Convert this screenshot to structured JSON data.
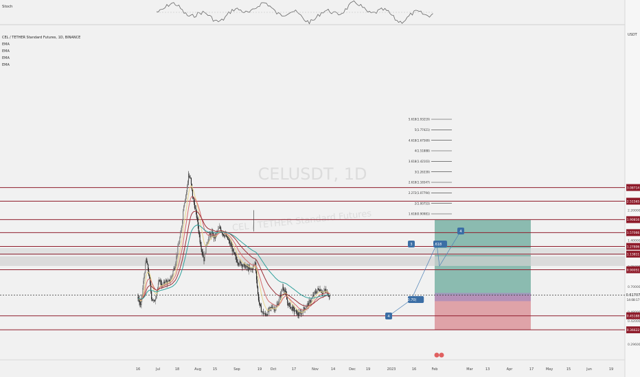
{
  "stoch_panel": {
    "label": "Stoch"
  },
  "main_panel": {
    "symbol_title": "CEL / TETHER Standard Futures, 1D, BINANCE",
    "indicators": [
      "EMA",
      "EMA",
      "EMA",
      "EMA"
    ],
    "watermark_ticker": "CELUSDT, 1D",
    "watermark_name": "CEL / TETHER Standard Futures",
    "currency": "USDT"
  },
  "chart_data": {
    "type": "candlestick",
    "title": "CEL / TETHER Standard Futures, 1D, BINANCE",
    "y_scale": "log",
    "ylim": [
      0.35,
      4.2
    ],
    "x_tick_labels": [
      "16",
      "Jul",
      "18",
      "Aug",
      "15",
      "Sep",
      "19",
      "Oct",
      "17",
      "Nov",
      "14",
      "Dec",
      "19",
      "2023",
      "16",
      "Feb",
      "Mar",
      "13",
      "Apr",
      "17",
      "May",
      "15",
      "Jun",
      "19"
    ],
    "y_tick_labels": [
      "2.20000",
      "1.60000",
      "1.40000",
      "0.95000",
      "0.70000",
      "0.48000",
      "0.42000",
      "0.29600"
    ],
    "horizontal_levels": [
      {
        "label": "3.08714",
        "value": 3.08714,
        "color": "#8e1b2a"
      },
      {
        "label": "2.51565",
        "value": 2.51565,
        "color": "#8e1b2a"
      },
      {
        "label": "1.90816",
        "value": 1.90816,
        "color": "#8e1b2a"
      },
      {
        "label": "1.57066",
        "value": 1.57066,
        "color": "#8e1b2a"
      },
      {
        "label": "1.27806",
        "value": 1.27806,
        "color": "#8e1b2a"
      },
      {
        "label": "1.13811",
        "value": 1.13811,
        "color": "#8e1b2a"
      },
      {
        "label": "0.90051",
        "value": 0.90051,
        "color": "#8e1b2a"
      },
      {
        "label": "0.45188",
        "value": 0.45188,
        "color": "#8e1b2a"
      },
      {
        "label": "0.36622",
        "value": 0.36622,
        "color": "#8e1b2a"
      }
    ],
    "current_price": {
      "label": "0.61707",
      "value": 0.61707,
      "color": "#222222"
    },
    "price_countdown": "14:08:17",
    "long_position": {
      "entry": 0.61707,
      "target": 1.9,
      "stop": 0.36622,
      "target_color": "#7fb5a8",
      "stop_color": "#dd9aa0"
    },
    "fib_levels": [
      "5.618(1.93219)",
      "5(1.77421)",
      "4.618(1.67569)",
      "4(1.51888)",
      "3.618(1.42103)",
      "3(1.26339)",
      "2.618(1.16547)",
      "2.272(1.07794)",
      "2(1.00753)",
      "1.618(0.90981)"
    ],
    "wave_labels": [
      "3",
      "4",
      "(0.70)",
      "1.618",
      "4"
    ],
    "highs": {
      "ath": 3.95,
      "sep_spike": 2.2
    }
  }
}
